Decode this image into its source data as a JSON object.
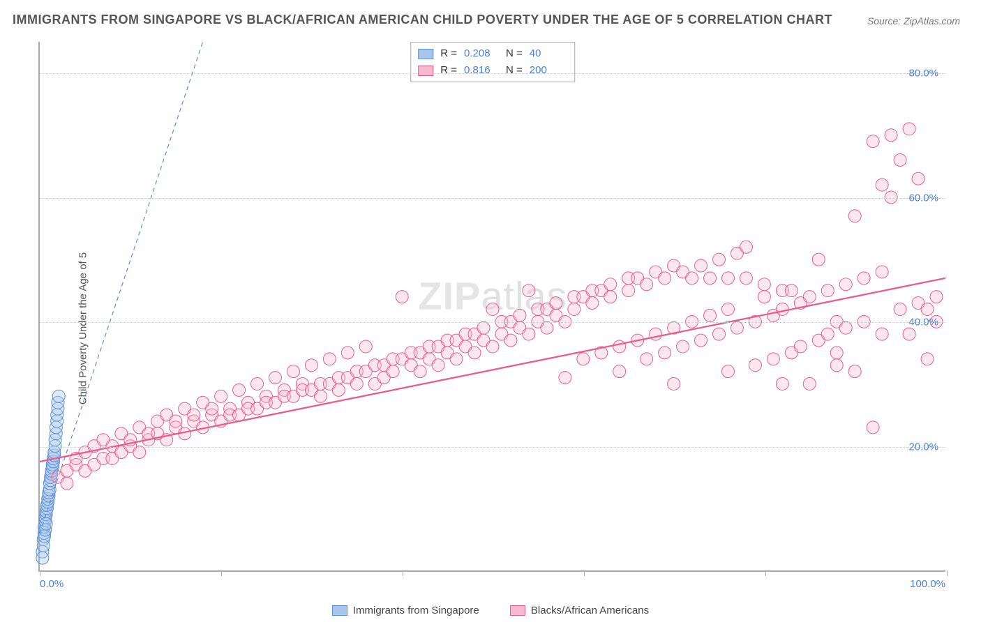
{
  "title": "IMMIGRANTS FROM SINGAPORE VS BLACK/AFRICAN AMERICAN CHILD POVERTY UNDER THE AGE OF 5 CORRELATION CHART",
  "source": "Source: ZipAtlas.com",
  "watermark_a": "ZIP",
  "watermark_b": "atlas",
  "y_label": "Child Poverty Under the Age of 5",
  "chart": {
    "type": "scatter",
    "xlim": [
      0,
      100
    ],
    "ylim": [
      0,
      85
    ],
    "x_ticks": [
      0,
      20,
      40,
      60,
      80,
      100
    ],
    "x_tick_labels_shown": {
      "0": "0.0%",
      "100": "100.0%"
    },
    "y_ticks": [
      20,
      40,
      60,
      80
    ],
    "y_tick_labels": {
      "20": "20.0%",
      "40": "40.0%",
      "60": "60.0%",
      "80": "80.0%"
    },
    "background_color": "#ffffff",
    "grid_color": "#cccccc",
    "axis_color": "#aaaaaa",
    "marker_radius": 9,
    "marker_opacity": 0.35,
    "series": [
      {
        "name": "Immigrants from Singapore",
        "color_fill": "#a8c5ec",
        "color_stroke": "#5a8fd6",
        "R": "0.208",
        "N": "40",
        "trend": {
          "x1": 0,
          "y1": 6,
          "x2": 18,
          "y2": 85,
          "dash": true,
          "color": "#5a8fd6",
          "width": 1.2
        },
        "points": [
          [
            0.3,
            3
          ],
          [
            0.4,
            5
          ],
          [
            0.5,
            6
          ],
          [
            0.5,
            7
          ],
          [
            0.6,
            8
          ],
          [
            0.6,
            8.5
          ],
          [
            0.7,
            9
          ],
          [
            0.7,
            9.5
          ],
          [
            0.8,
            10
          ],
          [
            0.8,
            10.5
          ],
          [
            0.9,
            11
          ],
          [
            0.9,
            11.5
          ],
          [
            1.0,
            12
          ],
          [
            1.0,
            12.5
          ],
          [
            1.1,
            13
          ],
          [
            1.1,
            14
          ],
          [
            1.2,
            14.5
          ],
          [
            1.2,
            15
          ],
          [
            1.3,
            15.5
          ],
          [
            1.3,
            16
          ],
          [
            1.4,
            16.5
          ],
          [
            1.4,
            17
          ],
          [
            1.5,
            17.5
          ],
          [
            1.5,
            18
          ],
          [
            1.6,
            18.5
          ],
          [
            1.6,
            19
          ],
          [
            1.7,
            20
          ],
          [
            1.7,
            21
          ],
          [
            1.8,
            22
          ],
          [
            1.8,
            23
          ],
          [
            1.9,
            24
          ],
          [
            1.9,
            25
          ],
          [
            2.0,
            26
          ],
          [
            2.0,
            27
          ],
          [
            2.1,
            28
          ],
          [
            0.4,
            4
          ],
          [
            0.5,
            5.5
          ],
          [
            0.6,
            6.5
          ],
          [
            0.7,
            7.5
          ],
          [
            0.3,
            2
          ]
        ]
      },
      {
        "name": "Blacks/African Americans",
        "color_fill": "#f6b9cd",
        "color_stroke": "#ea5d8a",
        "R": "0.816",
        "N": "200",
        "trend": {
          "x1": 0,
          "y1": 17.5,
          "x2": 100,
          "y2": 47,
          "dash": false,
          "color": "#ea5d8a",
          "width": 2.3
        },
        "points": [
          [
            2,
            15
          ],
          [
            3,
            16
          ],
          [
            3,
            14
          ],
          [
            4,
            17
          ],
          [
            4,
            18
          ],
          [
            5,
            16
          ],
          [
            5,
            19
          ],
          [
            6,
            17
          ],
          [
            6,
            20
          ],
          [
            7,
            18
          ],
          [
            7,
            21
          ],
          [
            8,
            18
          ],
          [
            8,
            20
          ],
          [
            9,
            19
          ],
          [
            9,
            22
          ],
          [
            10,
            20
          ],
          [
            10,
            21
          ],
          [
            11,
            19
          ],
          [
            11,
            23
          ],
          [
            12,
            21
          ],
          [
            12,
            22
          ],
          [
            13,
            22
          ],
          [
            13,
            24
          ],
          [
            14,
            21
          ],
          [
            14,
            25
          ],
          [
            15,
            23
          ],
          [
            15,
            24
          ],
          [
            16,
            22
          ],
          [
            16,
            26
          ],
          [
            17,
            24
          ],
          [
            17,
            25
          ],
          [
            18,
            23
          ],
          [
            18,
            27
          ],
          [
            19,
            25
          ],
          [
            19,
            26
          ],
          [
            20,
            24
          ],
          [
            20,
            28
          ],
          [
            21,
            26
          ],
          [
            21,
            25
          ],
          [
            22,
            25
          ],
          [
            22,
            29
          ],
          [
            23,
            27
          ],
          [
            23,
            26
          ],
          [
            24,
            26
          ],
          [
            24,
            30
          ],
          [
            25,
            28
          ],
          [
            25,
            27
          ],
          [
            26,
            27
          ],
          [
            26,
            31
          ],
          [
            27,
            29
          ],
          [
            27,
            28
          ],
          [
            28,
            28
          ],
          [
            28,
            32
          ],
          [
            29,
            30
          ],
          [
            29,
            29
          ],
          [
            30,
            29
          ],
          [
            30,
            33
          ],
          [
            31,
            30
          ],
          [
            31,
            28
          ],
          [
            32,
            30
          ],
          [
            32,
            34
          ],
          [
            33,
            31
          ],
          [
            33,
            29
          ],
          [
            34,
            31
          ],
          [
            34,
            35
          ],
          [
            35,
            32
          ],
          [
            35,
            30
          ],
          [
            36,
            32
          ],
          [
            36,
            36
          ],
          [
            37,
            30
          ],
          [
            37,
            33
          ],
          [
            38,
            33
          ],
          [
            38,
            31
          ],
          [
            39,
            34
          ],
          [
            39,
            32
          ],
          [
            40,
            34
          ],
          [
            40,
            44
          ],
          [
            41,
            35
          ],
          [
            41,
            33
          ],
          [
            42,
            35
          ],
          [
            42,
            32
          ],
          [
            43,
            36
          ],
          [
            43,
            34
          ],
          [
            44,
            36
          ],
          [
            44,
            33
          ],
          [
            45,
            37
          ],
          [
            45,
            35
          ],
          [
            46,
            37
          ],
          [
            46,
            34
          ],
          [
            47,
            38
          ],
          [
            47,
            36
          ],
          [
            48,
            38
          ],
          [
            48,
            35
          ],
          [
            49,
            39
          ],
          [
            49,
            37
          ],
          [
            50,
            42
          ],
          [
            50,
            36
          ],
          [
            51,
            40
          ],
          [
            51,
            38
          ],
          [
            52,
            40
          ],
          [
            52,
            37
          ],
          [
            53,
            41
          ],
          [
            53,
            39
          ],
          [
            54,
            45
          ],
          [
            54,
            38
          ],
          [
            55,
            42
          ],
          [
            55,
            40
          ],
          [
            56,
            42
          ],
          [
            56,
            39
          ],
          [
            57,
            43
          ],
          [
            57,
            41
          ],
          [
            58,
            31
          ],
          [
            58,
            40
          ],
          [
            59,
            44
          ],
          [
            59,
            42
          ],
          [
            60,
            44
          ],
          [
            60,
            34
          ],
          [
            61,
            45
          ],
          [
            61,
            43
          ],
          [
            62,
            45
          ],
          [
            62,
            35
          ],
          [
            63,
            46
          ],
          [
            63,
            44
          ],
          [
            64,
            32
          ],
          [
            64,
            36
          ],
          [
            65,
            47
          ],
          [
            65,
            45
          ],
          [
            66,
            47
          ],
          [
            66,
            37
          ],
          [
            67,
            34
          ],
          [
            67,
            46
          ],
          [
            68,
            48
          ],
          [
            68,
            38
          ],
          [
            69,
            35
          ],
          [
            69,
            47
          ],
          [
            70,
            49
          ],
          [
            70,
            39
          ],
          [
            71,
            36
          ],
          [
            71,
            48
          ],
          [
            72,
            47
          ],
          [
            72,
            40
          ],
          [
            73,
            37
          ],
          [
            73,
            49
          ],
          [
            74,
            47
          ],
          [
            74,
            41
          ],
          [
            75,
            38
          ],
          [
            75,
            50
          ],
          [
            76,
            47
          ],
          [
            76,
            42
          ],
          [
            77,
            39
          ],
          [
            77,
            51
          ],
          [
            78,
            47
          ],
          [
            78,
            52
          ],
          [
            79,
            40
          ],
          [
            79,
            33
          ],
          [
            80,
            46
          ],
          [
            80,
            44
          ],
          [
            81,
            41
          ],
          [
            81,
            34
          ],
          [
            82,
            45
          ],
          [
            82,
            42
          ],
          [
            83,
            35
          ],
          [
            83,
            45
          ],
          [
            84,
            43
          ],
          [
            84,
            36
          ],
          [
            85,
            44
          ],
          [
            85,
            30
          ],
          [
            86,
            37
          ],
          [
            86,
            50
          ],
          [
            87,
            45
          ],
          [
            87,
            38
          ],
          [
            88,
            35
          ],
          [
            88,
            40
          ],
          [
            89,
            46
          ],
          [
            89,
            39
          ],
          [
            90,
            32
          ],
          [
            90,
            57
          ],
          [
            91,
            47
          ],
          [
            91,
            40
          ],
          [
            92,
            69
          ],
          [
            92,
            23
          ],
          [
            93,
            48
          ],
          [
            93,
            62
          ],
          [
            94,
            70
          ],
          [
            94,
            60
          ],
          [
            95,
            66
          ],
          [
            95,
            42
          ],
          [
            96,
            71
          ],
          [
            96,
            38
          ],
          [
            97,
            63
          ],
          [
            97,
            43
          ],
          [
            98,
            42
          ],
          [
            98,
            34
          ],
          [
            99,
            40
          ],
          [
            99,
            44
          ],
          [
            93,
            38
          ],
          [
            88,
            33
          ],
          [
            82,
            30
          ],
          [
            76,
            32
          ],
          [
            70,
            30
          ]
        ]
      }
    ]
  },
  "bottom_legend": [
    {
      "label": "Immigrants from Singapore",
      "fill": "#a8c5ec",
      "stroke": "#5a8fd6"
    },
    {
      "label": "Blacks/African Americans",
      "fill": "#f6b9cd",
      "stroke": "#ea5d8a"
    }
  ],
  "stats_labels": {
    "R": "R =",
    "N": "N ="
  }
}
